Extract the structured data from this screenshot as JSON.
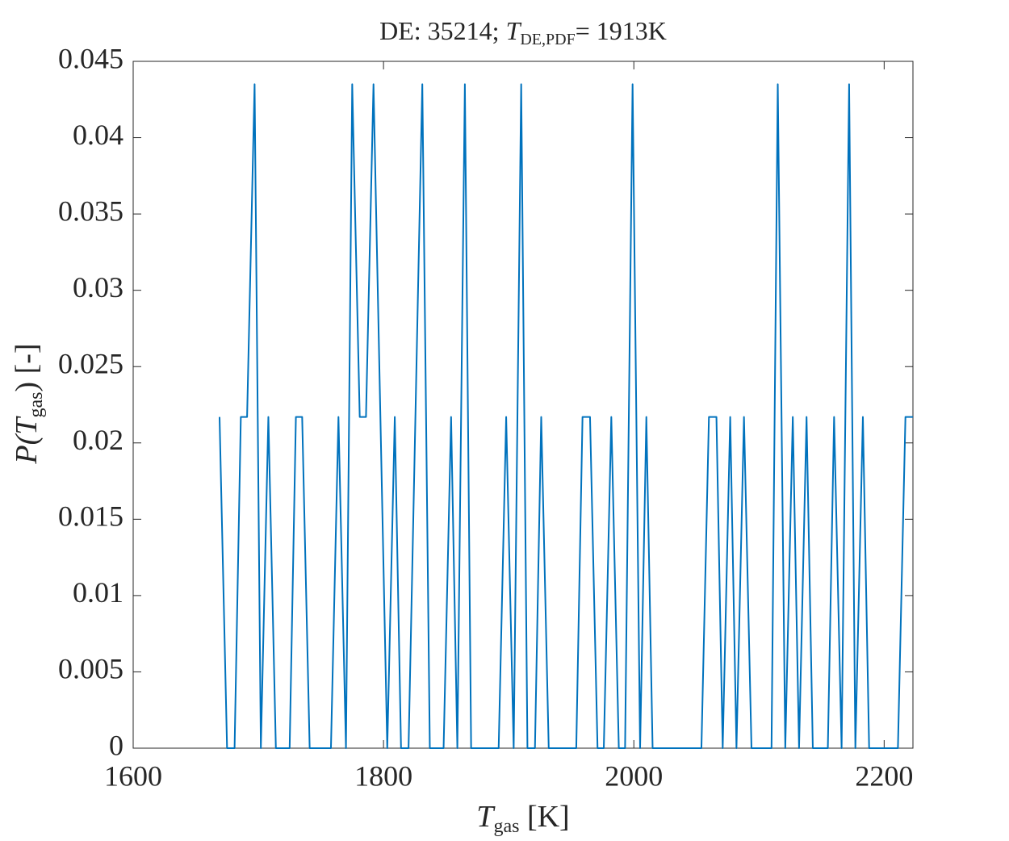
{
  "chart_data": {
    "type": "line",
    "title": [
      "DE: 35214; ",
      "T",
      "DE,PDF",
      "= 1913K"
    ],
    "x_label": [
      "T",
      "gas",
      " [K]"
    ],
    "y_label": [
      "P(",
      "T",
      "gas",
      ") [-]"
    ],
    "xlim": [
      1600,
      2223
    ],
    "ylim": [
      0,
      0.045
    ],
    "xticks": [
      1600,
      1800,
      2000,
      2200
    ],
    "yticks": [
      0,
      0.005,
      0.01,
      0.015,
      0.02,
      0.025,
      0.03,
      0.035,
      0.04,
      0.045
    ],
    "series": [
      {
        "color": "#0072bd",
        "x": [
          1669,
          1675,
          1681,
          1686,
          1691,
          1697,
          1702,
          1708,
          1714,
          1725,
          1730,
          1735,
          1741,
          1758,
          1764,
          1770,
          1775,
          1781,
          1786,
          1792,
          1803,
          1809,
          1814,
          1820,
          1831,
          1837,
          1848,
          1854,
          1859,
          1865,
          1870,
          1892,
          1898,
          1904,
          1910,
          1915,
          1921,
          1926,
          1932,
          1954,
          1959,
          1965,
          1971,
          1976,
          1982,
          1988,
          1993,
          1999,
          2005,
          2010,
          2015,
          2054,
          2060,
          2066,
          2071,
          2077,
          2082,
          2088,
          2094,
          2110,
          2115,
          2121,
          2127,
          2132,
          2138,
          2143,
          2155,
          2160,
          2166,
          2172,
          2177,
          2183,
          2188,
          2211,
          2217,
          2223
        ],
        "values": [
          0.0217,
          0,
          0,
          0.0217,
          0.0217,
          0.0435,
          0,
          0.0217,
          0,
          0,
          0.0217,
          0.0217,
          0,
          0,
          0.0217,
          0,
          0.0435,
          0.0217,
          0.0217,
          0.0435,
          0,
          0.0217,
          0,
          0,
          0.0435,
          0,
          0,
          0.0217,
          0,
          0.0435,
          0,
          0,
          0.0217,
          0,
          0.0435,
          0,
          0,
          0.0217,
          0,
          0,
          0.0217,
          0.0217,
          0,
          0,
          0.0217,
          0,
          0,
          0.0435,
          0,
          0.0217,
          0,
          0,
          0.0217,
          0.0217,
          0,
          0.0217,
          0,
          0.0217,
          0,
          0,
          0.0435,
          0,
          0.0217,
          0,
          0.0217,
          0,
          0,
          0.0217,
          0,
          0.0435,
          0,
          0.0217,
          0,
          0,
          0.0217,
          0.0217
        ]
      }
    ]
  }
}
